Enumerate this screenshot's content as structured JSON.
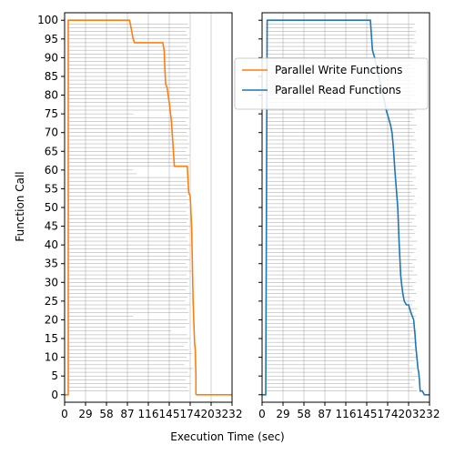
{
  "chart_data": {
    "type": "line",
    "ylabel": "Function Call",
    "xlabel": "Execution Time (sec)",
    "x_ticks": [
      0,
      29,
      58,
      87,
      116,
      145,
      174,
      203,
      232
    ],
    "y_ticks": [
      0,
      5,
      10,
      15,
      20,
      25,
      30,
      35,
      40,
      45,
      50,
      55,
      60,
      65,
      70,
      75,
      80,
      85,
      90,
      95,
      100
    ],
    "xlim": [
      0,
      232
    ],
    "ylim": [
      -2,
      102
    ],
    "grid": "vertical",
    "legend_location": "upper-right of right panel",
    "colors": {
      "write": "#ff7f0e",
      "read": "#1f77b4",
      "grid": "#c8c8c8",
      "bars": "#8c8c8c"
    },
    "panels": [
      {
        "series": [
          {
            "name": "Parallel Write Functions",
            "color": "#ff7f0e",
            "x": [
              0,
              5,
              5,
              90,
              93,
              95,
              97,
              99,
              136,
              138,
              139,
              140,
              142,
              145,
              148,
              150,
              152,
              160,
              162,
              165,
              170,
              172,
              174,
              176,
              178,
              180,
              181,
              182,
              182
            ],
            "y": [
              0,
              0,
              100,
              100,
              97,
              95,
              94,
              94,
              94,
              92,
              87,
              83,
              82,
              78,
              73,
              67,
              61,
              61,
              61,
              61,
              61,
              54,
              53,
              45,
              25,
              14,
              12,
              5,
              0
            ]
          },
          {
            "name": "",
            "color": "#ff7f0e",
            "x": [
              182,
              232
            ],
            "y": [
              0,
              0
            ]
          }
        ],
        "bars": {
          "left_x": 5,
          "y": [
            1,
            2,
            3,
            4,
            5,
            6,
            7,
            8,
            9,
            10,
            11,
            12,
            13,
            14,
            15,
            16,
            17,
            18,
            19,
            20,
            21,
            22,
            23,
            24,
            25,
            26,
            27,
            28,
            29,
            30,
            31,
            32,
            33,
            34,
            35,
            36,
            37,
            38,
            39,
            40,
            41,
            42,
            43,
            44,
            45,
            46,
            47,
            48,
            49,
            50,
            51,
            52,
            53,
            54,
            55,
            56,
            57,
            58,
            59,
            60,
            61,
            62,
            63,
            64,
            65,
            66,
            67,
            68,
            69,
            70,
            71,
            72,
            73,
            74,
            75,
            76,
            77,
            78,
            79,
            80,
            81,
            82,
            83,
            84,
            85,
            86,
            87,
            88,
            89,
            90,
            91,
            92,
            93,
            94,
            95,
            96,
            97,
            98,
            99
          ],
          "right_x": [
            172,
            170,
            175,
            168,
            174,
            171,
            178,
            166,
            173,
            169,
            176,
            172,
            165,
            171,
            174,
            170,
            148,
            168,
            173,
            170,
            95,
            172,
            169,
            174,
            167,
            171,
            175,
            168,
            172,
            170,
            173,
            169,
            176,
            171,
            168,
            174,
            170,
            172,
            169,
            175,
            171,
            168,
            173,
            170,
            174,
            169,
            172,
            171,
            168,
            173,
            170,
            174,
            169,
            171,
            172,
            168,
            170,
            173,
            100,
            95,
            169,
            172,
            170,
            174,
            168,
            171,
            173,
            170,
            172,
            169,
            174,
            171,
            168,
            172,
            95,
            170,
            173,
            169,
            171,
            174,
            168,
            172,
            170,
            173,
            169,
            171,
            174,
            168,
            172,
            170,
            173,
            171,
            169,
            172,
            174,
            170,
            168,
            173,
            171
          ]
        }
      },
      {
        "series": [
          {
            "name": "Parallel Read Functions",
            "color": "#1f77b4",
            "x": [
              0,
              5,
              7,
              150,
              153,
              156,
              160,
              163,
              166,
              169,
              172,
              175,
              178,
              180,
              182,
              184,
              186,
              188,
              189,
              190,
              191,
              192,
              193,
              195,
              197,
              200,
              203,
              206,
              208,
              210,
              211,
              212,
              213,
              214,
              215,
              216,
              217,
              218,
              219,
              222,
              225,
              228,
              232
            ],
            "y": [
              0,
              0,
              100,
              100,
              92,
              90,
              86,
              84,
              81,
              79,
              76,
              74,
              72,
              70,
              66,
              60,
              55,
              50,
              45,
              40,
              36,
              32,
              30,
              27,
              25,
              24,
              24,
              22,
              21,
              20,
              18,
              16,
              13,
              11,
              9,
              7,
              6,
              4,
              1,
              1,
              0,
              0,
              0
            ]
          }
        ],
        "bars": {
          "left_x": 5,
          "y": [
            1,
            2,
            3,
            4,
            5,
            6,
            7,
            8,
            9,
            10,
            11,
            12,
            13,
            14,
            15,
            16,
            17,
            18,
            19,
            20,
            21,
            22,
            23,
            24,
            25,
            26,
            27,
            28,
            29,
            30,
            31,
            32,
            33,
            34,
            35,
            36,
            37,
            38,
            39,
            40,
            41,
            42,
            43,
            44,
            45,
            46,
            47,
            48,
            49,
            50,
            51,
            52,
            53,
            54,
            55,
            56,
            57,
            58,
            59,
            60,
            61,
            62,
            63,
            64,
            65,
            66,
            67,
            68,
            69,
            70,
            71,
            72,
            73,
            74,
            75,
            76,
            77,
            78,
            79,
            80,
            81,
            82,
            83,
            84,
            85,
            86,
            87,
            88,
            89,
            90,
            91,
            92,
            93,
            94,
            95,
            96,
            97,
            98,
            99
          ],
          "right_x": [
            215,
            210,
            205,
            212,
            218,
            208,
            214,
            203,
            211,
            216,
            209,
            213,
            207,
            215,
            211,
            206,
            214,
            209,
            212,
            205,
            213,
            210,
            215,
            208,
            212,
            206,
            214,
            211,
            209,
            213,
            207,
            215,
            210,
            212,
            208,
            214,
            206,
            211,
            213,
            209,
            215,
            207,
            212,
            210,
            214,
            208,
            211,
            213,
            206,
            210,
            214,
            209,
            212,
            207,
            215,
            211,
            209,
            213,
            208,
            210,
            214,
            206,
            212,
            209,
            215,
            211,
            207,
            213,
            210,
            212,
            208,
            214,
            206,
            211,
            209,
            213,
            210,
            215,
            207,
            212,
            209,
            211,
            214,
            208,
            212,
            210,
            213,
            207,
            215,
            209,
            211,
            212,
            208,
            214,
            210,
            211,
            213,
            209,
            212
          ]
        }
      }
    ]
  }
}
